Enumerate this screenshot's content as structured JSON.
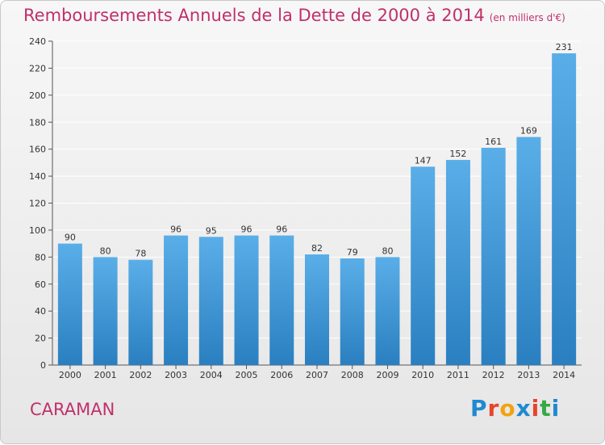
{
  "title": "Remboursements Annuels de la Dette de 2000 à 2014",
  "unit_note": "(en milliers d'€)",
  "commune": "CARAMAN",
  "logo": {
    "text": "Proxiti",
    "colors": [
      "#1f8ad1",
      "#e8442b",
      "#f2a30f",
      "#1f8ad1",
      "#e8442b",
      "#36a946",
      "#1f8ad1"
    ]
  },
  "colors": {
    "title": "#c0306a",
    "bar_top": "#5aaee8",
    "bar_bottom": "#2a7fc0",
    "grid": "#ffffff"
  },
  "chart_data": {
    "type": "bar",
    "categories": [
      "2000",
      "2001",
      "2002",
      "2003",
      "2004",
      "2005",
      "2006",
      "2007",
      "2008",
      "2009",
      "2010",
      "2011",
      "2012",
      "2013",
      "2014"
    ],
    "values": [
      90,
      80,
      78,
      96,
      95,
      96,
      96,
      82,
      79,
      80,
      147,
      152,
      161,
      169,
      231
    ],
    "title": "Remboursements Annuels de la Dette de 2000 à 2014",
    "xlabel": "",
    "ylabel": "",
    "ylim": [
      0,
      240
    ],
    "yticks": [
      0,
      20,
      40,
      60,
      80,
      100,
      120,
      140,
      160,
      180,
      200,
      220,
      240
    ],
    "grid": true,
    "data_labels": true
  }
}
